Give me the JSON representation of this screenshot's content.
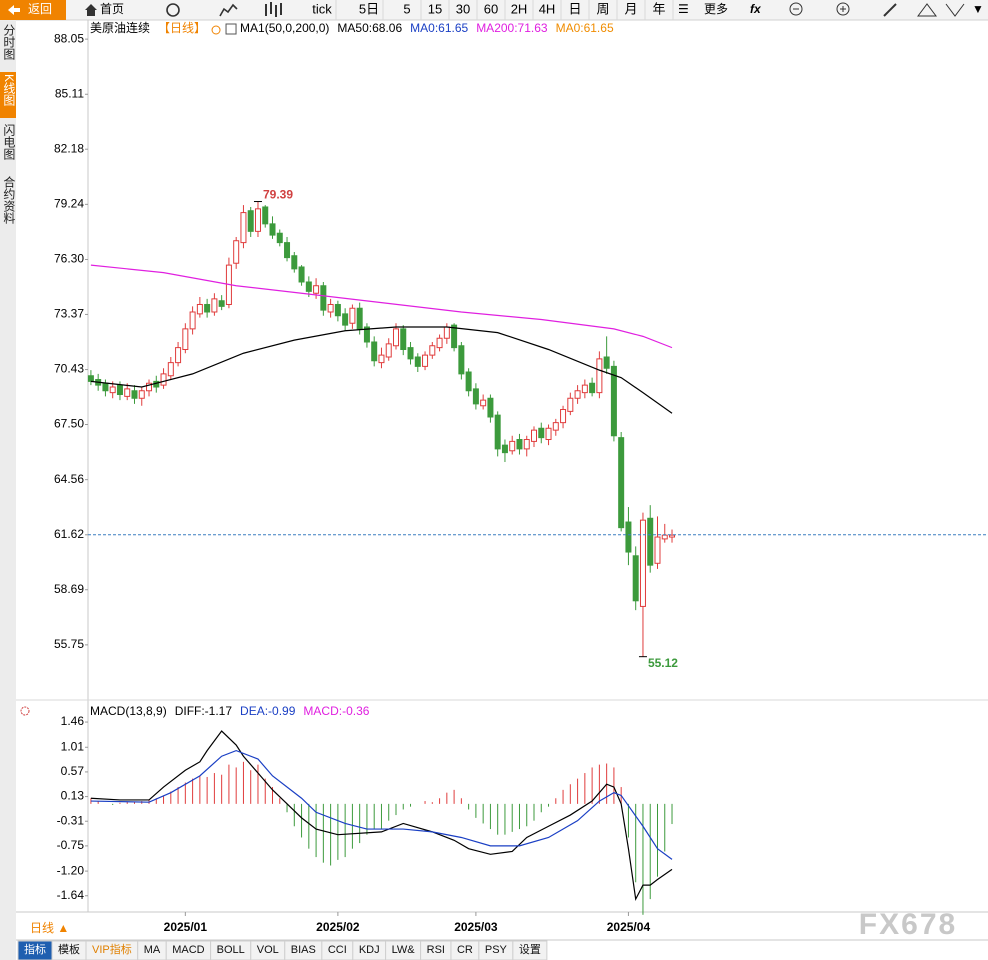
{
  "toolbar": {
    "back": "返回",
    "home": "首页",
    "periods": [
      "tick",
      "5日",
      "5",
      "15",
      "30",
      "60",
      "2H",
      "4H",
      "日",
      "周",
      "月",
      "年"
    ],
    "more": "更多"
  },
  "side_tabs": [
    "分时图",
    "K线图",
    "闪电图",
    "合约资料"
  ],
  "chart_data": [
    {
      "type": "candlestick",
      "title": "美原油连续",
      "period": "【日线】",
      "indicator": "MA1(50,0,200,0)",
      "x": [
        0,
        1,
        2,
        3,
        4,
        5,
        6,
        7,
        8,
        9,
        10,
        11,
        12,
        13,
        14,
        15,
        16,
        17,
        18,
        19,
        20,
        21,
        22,
        23,
        24,
        25,
        26,
        27,
        28,
        29,
        30,
        31,
        32,
        33,
        34,
        35,
        36,
        37,
        38,
        39,
        40,
        41,
        42,
        43,
        44,
        45,
        46,
        47,
        48,
        49,
        50,
        51,
        52,
        53,
        54,
        55,
        56,
        57,
        58,
        59,
        60,
        61,
        62,
        63,
        64,
        65,
        66,
        67,
        68,
        69,
        70,
        71,
        72,
        73,
        74,
        75,
        76,
        77,
        78,
        79,
        80
      ],
      "open": [
        70.1,
        69.9,
        69.7,
        69.2,
        69.6,
        69.0,
        69.3,
        68.9,
        69.3,
        69.8,
        69.6,
        70.1,
        70.8,
        71.5,
        72.6,
        73.4,
        73.9,
        73.5,
        74.1,
        73.9,
        76.1,
        77.2,
        78.9,
        77.8,
        79.1,
        78.2,
        77.7,
        77.2,
        76.5,
        75.9,
        75.1,
        74.5,
        74.9,
        73.5,
        73.9,
        73.4,
        72.9,
        73.7,
        72.7,
        71.9,
        70.8,
        71.1,
        71.7,
        72.6,
        71.6,
        71.1,
        70.6,
        71.2,
        71.6,
        72.1,
        72.8,
        71.7,
        70.3,
        69.4,
        68.5,
        68.9,
        68.0,
        66.4,
        66.1,
        66.7,
        66.2,
        66.6,
        67.3,
        66.7,
        67.2,
        67.6,
        68.2,
        68.9,
        69.2,
        69.7,
        69.2,
        71.1,
        70.6,
        66.8,
        62.3,
        60.5,
        57.8,
        62.5,
        60.1,
        61.4,
        61.5
      ],
      "high": [
        70.4,
        70.2,
        69.9,
        69.8,
        69.8,
        69.7,
        69.6,
        69.5,
        69.9,
        70.1,
        70.5,
        71.1,
        71.9,
        72.9,
        73.8,
        74.3,
        74.2,
        74.5,
        74.4,
        76.4,
        77.5,
        79.2,
        79.1,
        79.39,
        79.2,
        78.6,
        77.9,
        77.5,
        76.7,
        76.0,
        75.4,
        75.3,
        75.1,
        74.2,
        74.1,
        73.7,
        73.9,
        74.0,
        72.9,
        72.2,
        71.6,
        72.1,
        72.9,
        72.8,
        71.9,
        71.3,
        71.4,
        71.9,
        72.3,
        72.9,
        72.9,
        71.9,
        70.5,
        69.7,
        69.1,
        69.1,
        68.2,
        66.7,
        66.9,
        67.0,
        66.9,
        67.4,
        67.6,
        67.5,
        67.8,
        68.5,
        69.2,
        69.6,
        69.9,
        70.0,
        71.4,
        72.2,
        70.9,
        67.1,
        63.1,
        61.0,
        62.8,
        63.2,
        62.6,
        62.2,
        61.9
      ],
      "low": [
        69.6,
        69.3,
        69.0,
        68.9,
        68.8,
        68.8,
        68.6,
        68.5,
        69.0,
        69.2,
        69.4,
        69.9,
        70.6,
        71.3,
        72.3,
        73.2,
        73.2,
        73.3,
        73.6,
        73.7,
        75.8,
        76.9,
        77.5,
        77.5,
        78.0,
        77.4,
        77.0,
        76.2,
        75.6,
        74.9,
        74.3,
        74.2,
        73.3,
        73.2,
        73.0,
        72.5,
        72.6,
        72.3,
        71.6,
        70.6,
        70.5,
        70.9,
        71.5,
        71.2,
        70.7,
        70.3,
        70.4,
        71.0,
        71.4,
        71.8,
        71.4,
        69.9,
        69.0,
        68.3,
        68.3,
        67.6,
        65.8,
        65.5,
        65.9,
        65.9,
        65.8,
        66.3,
        66.5,
        66.4,
        66.9,
        67.3,
        68.0,
        68.6,
        68.9,
        69.0,
        68.9,
        70.2,
        66.6,
        61.8,
        60.0,
        57.6,
        55.12,
        59.6,
        59.8,
        61.2,
        61.2
      ],
      "close": [
        69.8,
        69.6,
        69.3,
        69.5,
        69.1,
        69.4,
        68.9,
        69.3,
        69.7,
        69.5,
        70.2,
        70.8,
        71.6,
        72.6,
        73.5,
        73.9,
        73.5,
        74.2,
        73.8,
        76.0,
        77.3,
        78.8,
        77.8,
        79.0,
        78.2,
        77.6,
        77.2,
        76.4,
        75.8,
        75.1,
        74.6,
        74.9,
        73.6,
        73.9,
        73.3,
        72.8,
        73.7,
        72.6,
        71.9,
        70.9,
        71.2,
        71.8,
        72.6,
        71.5,
        71.0,
        70.6,
        71.2,
        71.7,
        72.1,
        72.7,
        71.6,
        70.2,
        69.3,
        68.6,
        68.8,
        67.9,
        66.2,
        66.0,
        66.6,
        66.2,
        66.7,
        67.2,
        66.8,
        67.3,
        67.6,
        68.3,
        68.9,
        69.3,
        69.6,
        69.2,
        71.0,
        70.5,
        66.9,
        62.0,
        60.7,
        58.1,
        62.4,
        60.0,
        61.5,
        61.6,
        61.6
      ],
      "up_color": "#e03c3c",
      "down_color": "#3c9a3c",
      "series": [
        {
          "name": "MA50:68.06",
          "color": "#000000",
          "x": [
            0,
            7,
            14,
            21,
            28,
            35,
            42,
            49,
            56,
            63,
            70,
            73,
            76,
            80
          ],
          "values": [
            69.8,
            69.5,
            70.2,
            71.3,
            72.0,
            72.5,
            72.7,
            72.7,
            72.4,
            71.5,
            70.4,
            70.0,
            69.2,
            68.1
          ]
        },
        {
          "name": "MA200:71.63",
          "color": "#e020e0",
          "x": [
            0,
            10,
            20,
            29,
            40,
            51,
            62,
            72,
            76,
            80
          ],
          "values": [
            76.0,
            75.6,
            74.9,
            74.5,
            74.0,
            73.5,
            73.1,
            72.6,
            72.2,
            71.6
          ]
        }
      ],
      "legend_extra": [
        {
          "name": "MA0:61.65",
          "color": "#1a3fc4"
        },
        {
          "name": "MA0:61.65",
          "color": "#f08c00"
        }
      ],
      "annotations": [
        {
          "x": 23,
          "value": 79.39,
          "color": "#d04040"
        },
        {
          "x": 76,
          "value": 55.12,
          "color": "#3c9a3c"
        }
      ],
      "price_line": {
        "value": 61.62,
        "color": "#3a7fc0"
      },
      "xlim": [
        -0.4,
        123.5
      ],
      "ylim": [
        52.81,
        89.07
      ],
      "yticks": [
        88.05,
        85.11,
        82.18,
        79.24,
        {
          "value": 76.3,
          "label": "76.30"
        },
        73.37,
        70.43,
        {
          "value": 67.5,
          "label": "67.50"
        },
        64.56,
        61.62,
        58.69,
        55.75
      ]
    },
    {
      "type": "macd",
      "title": "MACD(13,8,9)",
      "x": [
        0,
        1,
        2,
        3,
        4,
        5,
        6,
        7,
        8,
        9,
        10,
        11,
        12,
        13,
        14,
        15,
        16,
        17,
        18,
        19,
        20,
        21,
        22,
        23,
        24,
        25,
        26,
        27,
        28,
        29,
        30,
        31,
        32,
        33,
        34,
        35,
        36,
        37,
        38,
        39,
        40,
        41,
        42,
        43,
        44,
        45,
        46,
        47,
        48,
        49,
        50,
        51,
        52,
        53,
        54,
        55,
        56,
        57,
        58,
        59,
        60,
        61,
        62,
        63,
        64,
        65,
        66,
        67,
        68,
        69,
        70,
        71,
        72,
        73,
        74,
        75,
        76,
        77,
        78,
        79,
        80
      ],
      "histogram": {
        "name": "MACD:-0.36",
        "color": "#e020e0",
        "up_color": "#e03c3c",
        "down_color": "#3c9a3c",
        "values": [
          0.1,
          0.05,
          0.0,
          -0.02,
          0.02,
          0.04,
          0.03,
          0.05,
          0.08,
          0.1,
          0.15,
          0.22,
          0.3,
          0.38,
          0.45,
          0.5,
          0.48,
          0.55,
          0.52,
          0.7,
          0.65,
          0.75,
          0.6,
          0.7,
          0.45,
          0.3,
          0.1,
          -0.15,
          -0.4,
          -0.6,
          -0.8,
          -0.95,
          -1.05,
          -1.1,
          -1.0,
          -0.95,
          -0.8,
          -0.7,
          -0.55,
          -0.45,
          -0.45,
          -0.3,
          -0.2,
          -0.1,
          -0.05,
          0.0,
          0.05,
          0.03,
          0.1,
          0.2,
          0.25,
          0.1,
          -0.1,
          -0.25,
          -0.35,
          -0.45,
          -0.55,
          -0.55,
          -0.5,
          -0.45,
          -0.4,
          -0.3,
          -0.15,
          -0.05,
          0.1,
          0.25,
          0.35,
          0.45,
          0.55,
          0.65,
          0.7,
          0.72,
          0.65,
          0.3,
          -0.6,
          -1.4,
          -1.98,
          -1.7,
          -1.3,
          -0.85,
          -0.36
        ]
      },
      "series": [
        {
          "name": "DIFF:-1.17",
          "color": "#000000",
          "x": [
            0,
            4,
            8,
            10,
            13,
            15,
            16,
            18,
            20,
            21,
            23,
            25,
            27,
            29,
            31,
            34,
            40,
            43,
            47,
            50,
            52,
            55,
            58,
            60,
            63,
            66,
            69,
            71,
            72,
            73,
            74,
            75,
            76,
            77,
            78,
            80
          ],
          "values": [
            0.1,
            0.07,
            0.07,
            0.3,
            0.6,
            0.75,
            0.95,
            1.3,
            1.05,
            0.85,
            0.55,
            0.25,
            0.0,
            -0.25,
            -0.45,
            -0.55,
            -0.5,
            -0.35,
            -0.5,
            -0.65,
            -0.8,
            -0.9,
            -0.85,
            -0.6,
            -0.4,
            -0.2,
            0.05,
            0.35,
            0.3,
            0.0,
            -0.8,
            -1.7,
            -1.45,
            -1.45,
            -1.35,
            -1.17
          ]
        },
        {
          "name": "DEA:-0.99",
          "color": "#1a3fc4",
          "x": [
            0,
            8,
            11,
            15,
            18,
            20,
            23,
            25,
            29,
            31,
            35,
            38,
            43,
            47,
            51,
            55,
            59,
            63,
            67,
            70,
            72,
            73,
            76,
            78,
            80
          ],
          "values": [
            0.05,
            0.03,
            0.2,
            0.5,
            0.85,
            0.95,
            0.8,
            0.5,
            0.1,
            -0.15,
            -0.35,
            -0.45,
            -0.45,
            -0.5,
            -0.6,
            -0.75,
            -0.75,
            -0.6,
            -0.3,
            0.05,
            0.2,
            0.15,
            -0.4,
            -0.8,
            -0.99
          ]
        }
      ],
      "xlim": [
        -0.4,
        123.5
      ],
      "xticks": [
        {
          "value": 13,
          "label": "2025/01"
        },
        {
          "value": 34,
          "label": "2025/02"
        },
        {
          "value": 53,
          "label": "2025/03"
        },
        {
          "value": 74,
          "label": "2025/04"
        }
      ],
      "ylim": [
        -1.93,
        1.8
      ],
      "yticks": [
        1.46,
        1.01,
        0.57,
        0.13,
        -0.31,
        -0.75,
        {
          "value": -1.2,
          "label": "-1.20"
        },
        -1.64
      ]
    }
  ],
  "bottom_bar": {
    "period": "日线 ▲",
    "tabs": [
      "指标",
      "模板",
      "VIP指标",
      "MA",
      "MACD",
      "BOLL",
      "VOL",
      "BIAS",
      "CCI",
      "KDJ",
      "LW&",
      "RSI",
      "CR",
      "PSY",
      "设置"
    ]
  },
  "watermark": "FX678"
}
